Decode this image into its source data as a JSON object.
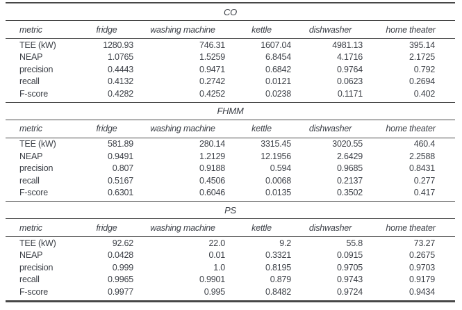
{
  "table": {
    "columns": [
      "metric",
      "fridge",
      "washing machine",
      "kettle",
      "dishwasher",
      "home theater"
    ],
    "sections": [
      {
        "title": "CO",
        "rows": [
          {
            "metric": "TEE (kW)",
            "values": [
              "1280.93",
              "746.31",
              "1607.04",
              "4981.13",
              "395.14"
            ]
          },
          {
            "metric": "NEAP",
            "values": [
              "1.0765",
              "1.5259",
              "6.8454",
              "4.1716",
              "2.1725"
            ]
          },
          {
            "metric": "precision",
            "values": [
              "0.4443",
              "0.9471",
              "0.6842",
              "0.9764",
              "0.792"
            ]
          },
          {
            "metric": "recall",
            "values": [
              "0.4132",
              "0.2742",
              "0.0121",
              "0.0623",
              "0.2694"
            ]
          },
          {
            "metric": "F-score",
            "values": [
              "0.4282",
              "0.4252",
              "0.0238",
              "0.1171",
              "0.402"
            ]
          }
        ]
      },
      {
        "title": "FHMM",
        "rows": [
          {
            "metric": "TEE (kW)",
            "values": [
              "581.89",
              "280.14",
              "3315.45",
              "3020.55",
              "460.4"
            ]
          },
          {
            "metric": "NEAP",
            "values": [
              "0.9491",
              "1.2129",
              "12.1956",
              "2.6429",
              "2.2588"
            ]
          },
          {
            "metric": "precision",
            "values": [
              "0.807",
              "0.9188",
              "0.594",
              "0.9685",
              "0.8431"
            ]
          },
          {
            "metric": "recall",
            "values": [
              "0.5167",
              "0.4506",
              "0.0068",
              "0.2137",
              "0.277"
            ]
          },
          {
            "metric": "F-score",
            "values": [
              "0.6301",
              "0.6046",
              "0.0135",
              "0.3502",
              "0.417"
            ]
          }
        ]
      },
      {
        "title": "PS",
        "rows": [
          {
            "metric": "TEE (kW)",
            "values": [
              "92.62",
              "22.0",
              "9.2",
              "55.8",
              "73.27"
            ]
          },
          {
            "metric": "NEAP",
            "values": [
              "0.0428",
              "0.01",
              "0.3321",
              "0.0915",
              "0.2675"
            ]
          },
          {
            "metric": "precision",
            "values": [
              "0.999",
              "1.0",
              "0.8195",
              "0.9705",
              "0.9703"
            ]
          },
          {
            "metric": "recall",
            "values": [
              "0.9965",
              "0.9901",
              "0.879",
              "0.9743",
              "0.9179"
            ]
          },
          {
            "metric": "F-score",
            "values": [
              "0.9977",
              "0.995",
              "0.8482",
              "0.9724",
              "0.9434"
            ]
          }
        ]
      }
    ]
  },
  "colors": {
    "text": "#3b3f46",
    "rule": "#474747",
    "background": "#ffffff"
  }
}
